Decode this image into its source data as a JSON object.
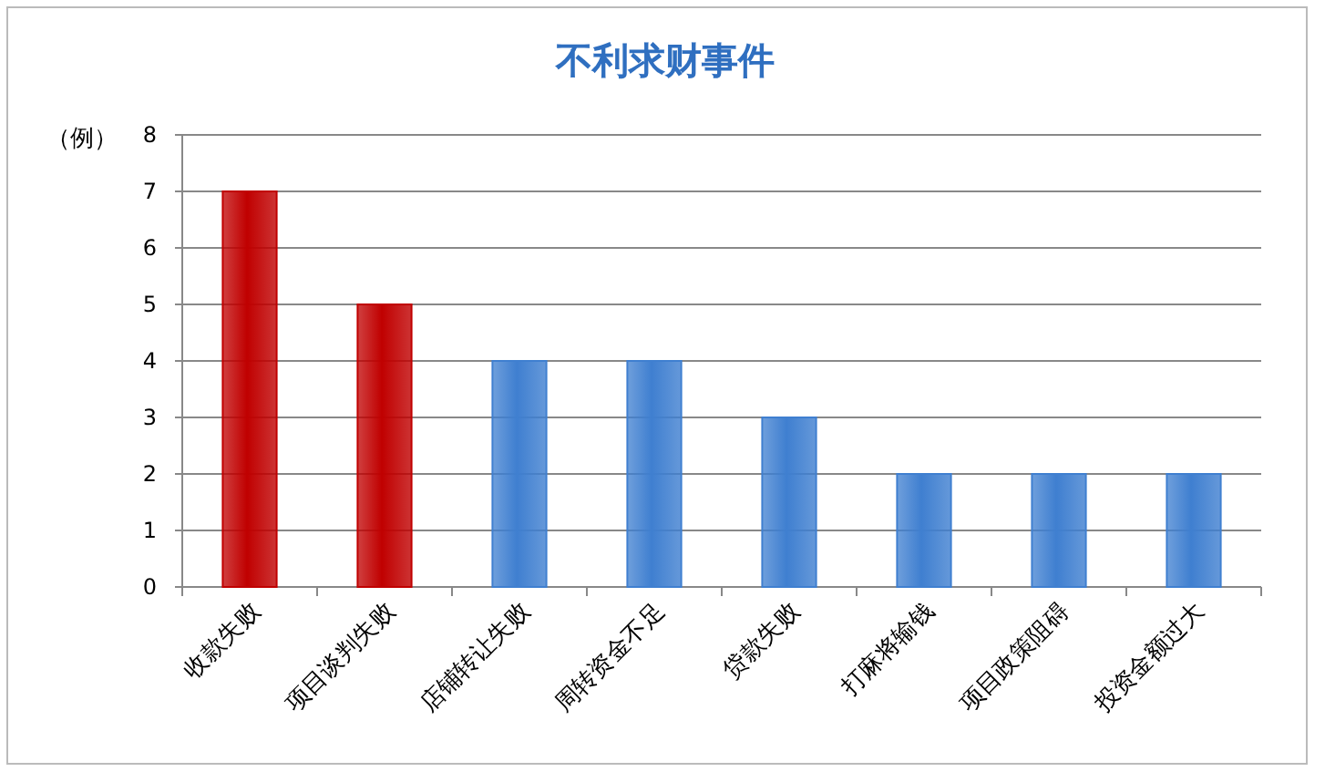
{
  "chart_data": {
    "type": "bar",
    "title": "不利求财事件",
    "ylabel": "（例）",
    "categories": [
      "收款失败",
      "项目谈判失败",
      "店铺转让失败",
      "周转资金不足",
      "贷款失败",
      "打麻将输钱",
      "项目政策阻碍",
      "投资金额过大"
    ],
    "values": [
      7,
      5,
      4,
      4,
      3,
      2,
      2,
      2
    ],
    "colors": [
      "#c00000",
      "#c00000",
      "#3f7fd0",
      "#3f7fd0",
      "#3f7fd0",
      "#3f7fd0",
      "#3f7fd0",
      "#3f7fd0"
    ],
    "ylim": [
      0,
      8
    ],
    "yticks": [
      0,
      1,
      2,
      3,
      4,
      5,
      6,
      7,
      8
    ],
    "grid": "y"
  }
}
